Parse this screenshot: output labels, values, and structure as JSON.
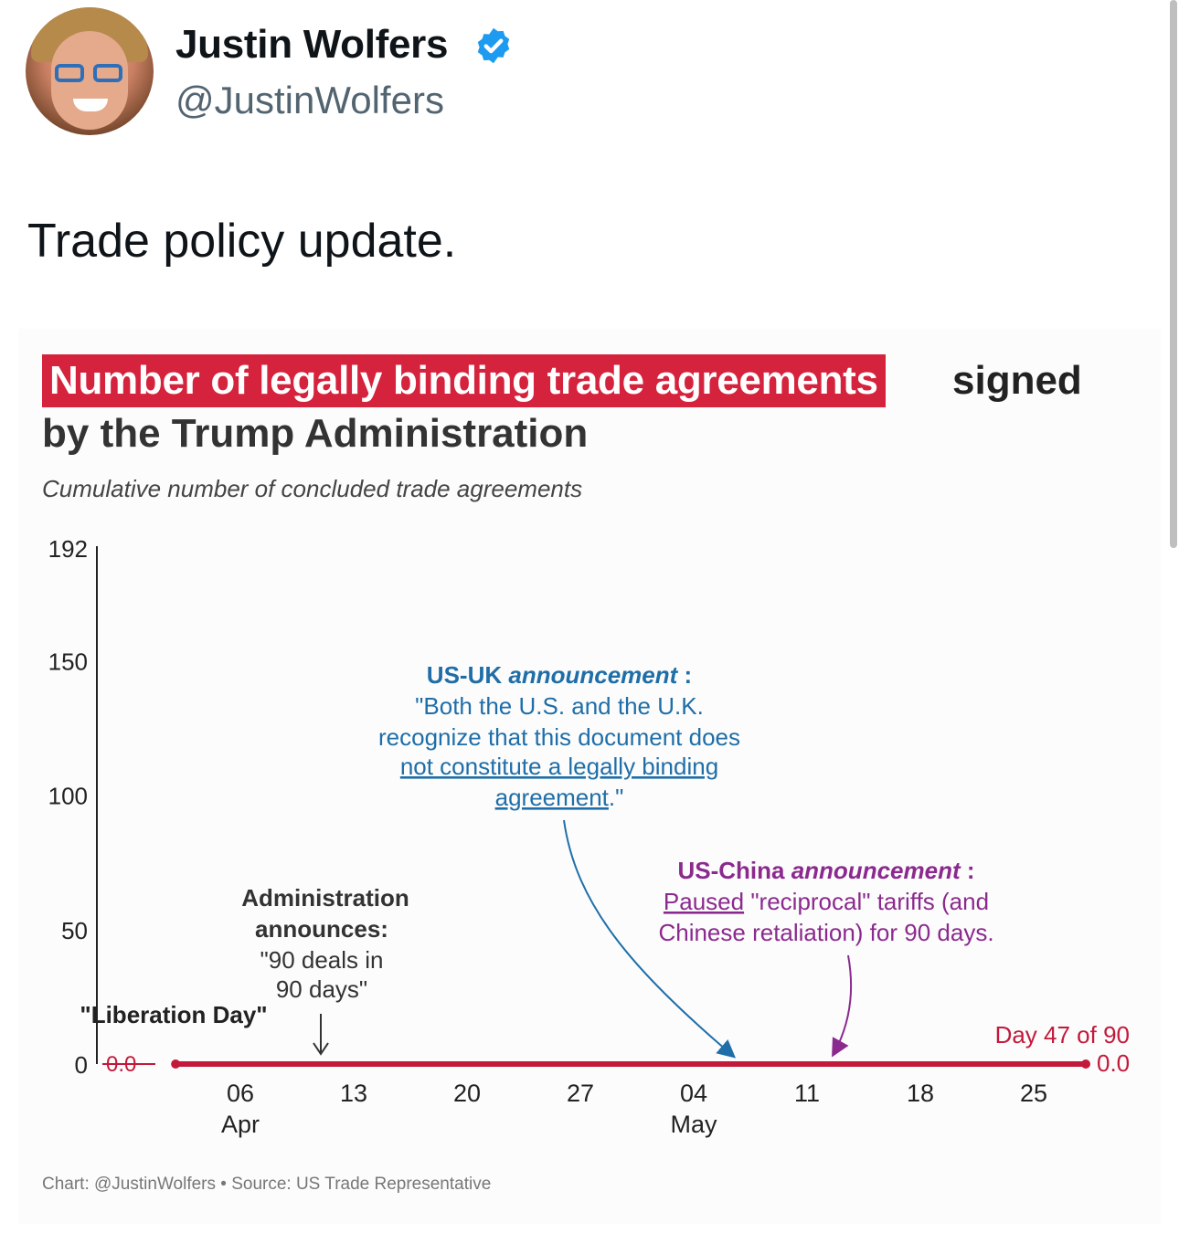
{
  "profile": {
    "name": "Justin Wolfers",
    "handle": "@JustinWolfers",
    "verified_icon": "verified-badge-icon"
  },
  "tweet": {
    "text": "Trade policy update."
  },
  "chart": {
    "title_highlight": "Number of legally binding trade agreements",
    "title_rest": "signed",
    "title_line2": "by the Trump Administration",
    "subtitle": "Cumulative number of concluded trade agreements",
    "footer": "Chart: @JustinWolfers • Source: US Trade Representative",
    "colors": {
      "highlight": "#d5223d",
      "line": "#c3193a",
      "uk": "#1f6ea8",
      "china": "#8b2a8e"
    }
  },
  "chart_data": {
    "type": "line",
    "title": "Number of legally binding trade agreements signed by the Trump Administration",
    "subtitle": "Cumulative number of concluded trade agreements",
    "ylim": [
      0,
      192
    ],
    "y_ticks": [
      "0",
      "50",
      "100",
      "150",
      "192"
    ],
    "x_ticks": [
      {
        "date": "2025-04-06",
        "label": "06",
        "sublabel": "Apr"
      },
      {
        "date": "2025-04-13",
        "label": "13",
        "sublabel": ""
      },
      {
        "date": "2025-04-20",
        "label": "20",
        "sublabel": ""
      },
      {
        "date": "2025-04-27",
        "label": "27",
        "sublabel": ""
      },
      {
        "date": "2025-05-04",
        "label": "04",
        "sublabel": "May"
      },
      {
        "date": "2025-05-11",
        "label": "11",
        "sublabel": ""
      },
      {
        "date": "2025-05-18",
        "label": "18",
        "sublabel": ""
      },
      {
        "date": "2025-05-25",
        "label": "25",
        "sublabel": ""
      }
    ],
    "series": [
      {
        "points": [
          {
            "x": "2025-04-02",
            "y": 0
          },
          {
            "x": "2025-05-18",
            "y": 0
          }
        ]
      }
    ],
    "point_labels": {
      "start": "0.0",
      "end": "0.0"
    },
    "annotations": {
      "liberation": "\"Liberation Day\"",
      "admin_head1": "Administration",
      "admin_head2": "announces:",
      "admin_body1": "\"90 deals in",
      "admin_body2": "90 days\"",
      "uk_head_bold": "US-UK",
      "uk_head_ital": "announcement",
      "uk_line1": "\"Both the U.S. and the U.K.",
      "uk_line2": "recognize that this document does",
      "uk_line3": "not constitute a legally binding",
      "uk_line4a": "agreement",
      "uk_line4b": ".\"",
      "china_head_bold": "US-China",
      "china_head_ital": "announcement",
      "china_line1a": "Paused",
      "china_line1b": " \"reciprocal\" tariffs (and",
      "china_line2": "Chinese retaliation) for 90 days.",
      "day_label": "Day 47 of 90"
    }
  }
}
